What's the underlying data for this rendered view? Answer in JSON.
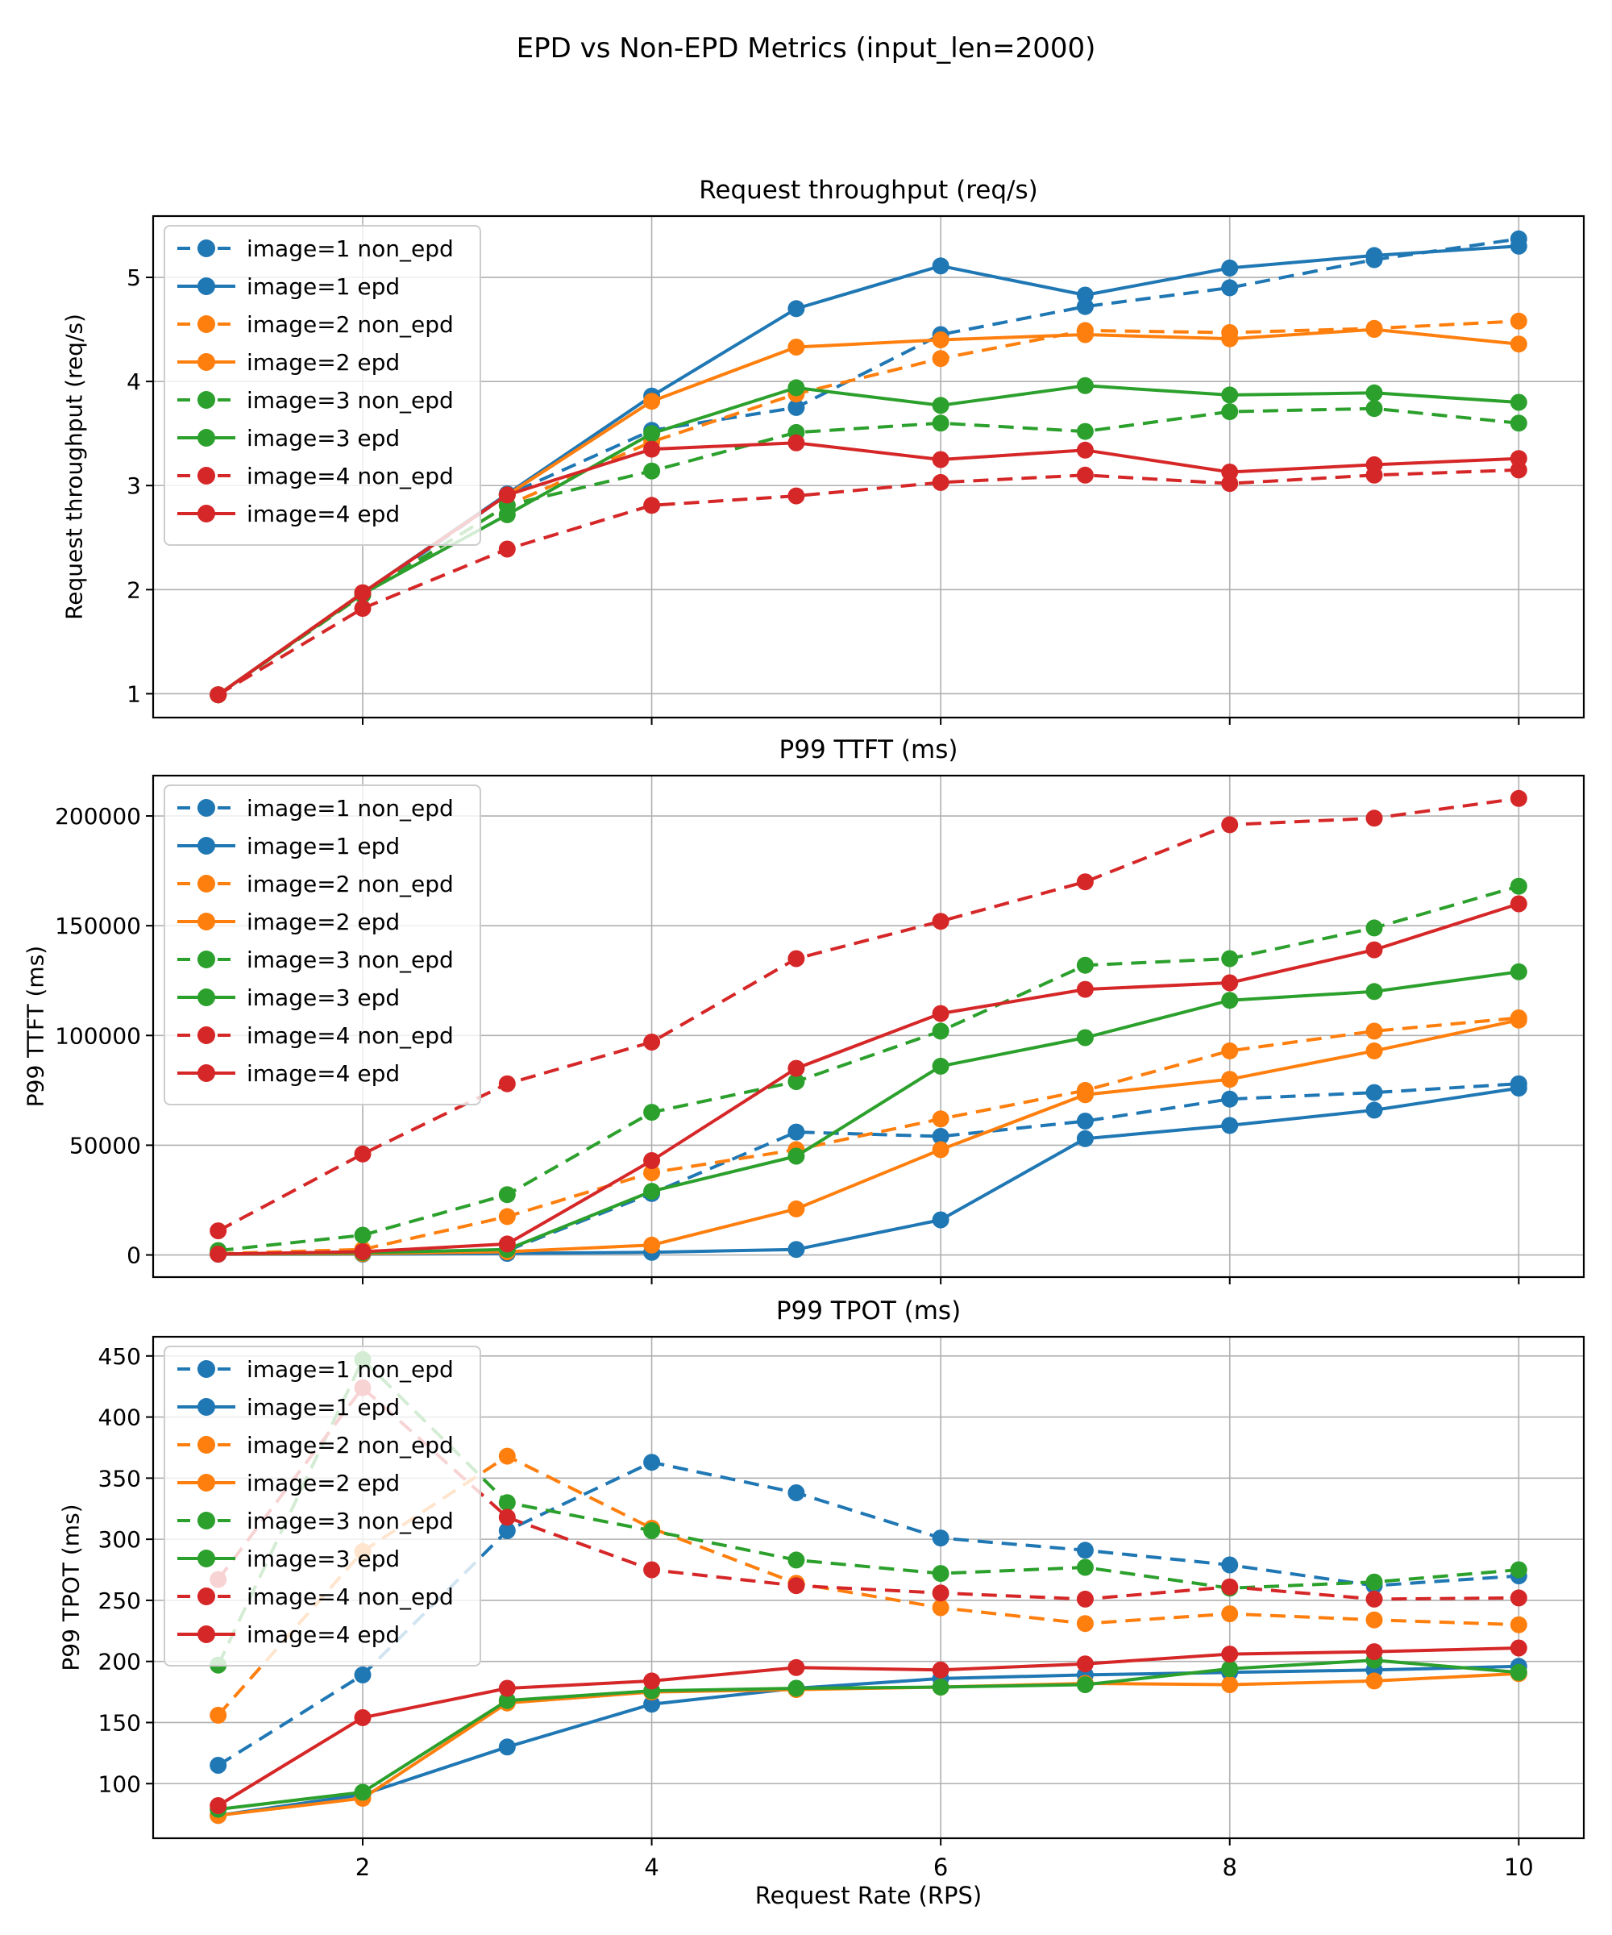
{
  "figure": {
    "title": "EPD vs Non-EPD Metrics (input_len=2000)",
    "xlabel": "Request Rate (RPS)",
    "colors": {
      "blue": "#1f77b4",
      "orange": "#ff7f0e",
      "green": "#2ca02c",
      "red": "#d62728"
    },
    "grid_color": "#b0b0b0",
    "legend_labels": [
      "image=1 non_epd",
      "image=1 epd",
      "image=2 non_epd",
      "image=2 epd",
      "image=3 non_epd",
      "image=3 epd",
      "image=4 non_epd",
      "image=4 epd"
    ]
  },
  "chart_data": [
    {
      "type": "line",
      "title": "Request throughput (req/s)",
      "ylabel": "Request throughput (req/s)",
      "xlabel": "",
      "x": [
        1,
        2,
        3,
        4,
        5,
        6,
        7,
        8,
        9,
        10
      ],
      "xticks": [
        2,
        4,
        6,
        8,
        10
      ],
      "yticks": [
        1,
        2,
        3,
        4,
        5
      ],
      "ytick_labels": [
        "1",
        "2",
        "3",
        "4",
        "5"
      ],
      "ylim": [
        0.771,
        5.589
      ],
      "grid": true,
      "legend_position": "upper-left",
      "series": [
        {
          "name": "image=1 non_epd",
          "color": "blue",
          "dash": true,
          "values": [
            0.99,
            1.95,
            2.91,
            3.53,
            3.75,
            4.45,
            4.72,
            4.9,
            5.17,
            5.37
          ]
        },
        {
          "name": "image=1 epd",
          "color": "blue",
          "dash": false,
          "values": [
            0.99,
            1.97,
            2.92,
            3.86,
            4.7,
            5.11,
            4.83,
            5.09,
            5.21,
            5.3
          ]
        },
        {
          "name": "image=2 non_epd",
          "color": "orange",
          "dash": true,
          "values": [
            0.99,
            1.95,
            2.81,
            3.42,
            3.88,
            4.22,
            4.49,
            4.47,
            4.51,
            4.58
          ]
        },
        {
          "name": "image=2 epd",
          "color": "orange",
          "dash": false,
          "values": [
            0.99,
            1.97,
            2.91,
            3.81,
            4.33,
            4.4,
            4.45,
            4.41,
            4.5,
            4.36
          ]
        },
        {
          "name": "image=3 non_epd",
          "color": "green",
          "dash": true,
          "values": [
            0.99,
            1.95,
            2.81,
            3.14,
            3.51,
            3.6,
            3.52,
            3.71,
            3.74,
            3.6
          ]
        },
        {
          "name": "image=3 epd",
          "color": "green",
          "dash": false,
          "values": [
            0.99,
            1.96,
            2.72,
            3.5,
            3.94,
            3.77,
            3.96,
            3.87,
            3.89,
            3.8
          ]
        },
        {
          "name": "image=4 non_epd",
          "color": "red",
          "dash": true,
          "values": [
            0.99,
            1.82,
            2.39,
            2.81,
            2.9,
            3.03,
            3.1,
            3.02,
            3.1,
            3.15
          ]
        },
        {
          "name": "image=4 epd",
          "color": "red",
          "dash": false,
          "values": [
            0.99,
            1.97,
            2.91,
            3.35,
            3.41,
            3.25,
            3.34,
            3.13,
            3.2,
            3.26
          ]
        }
      ]
    },
    {
      "type": "line",
      "title": "P99 TTFT (ms)",
      "ylabel": "P99 TTFT (ms)",
      "xlabel": "",
      "x": [
        1,
        2,
        3,
        4,
        5,
        6,
        7,
        8,
        9,
        10
      ],
      "xticks": [
        2,
        4,
        6,
        8,
        10
      ],
      "yticks": [
        0,
        50000,
        100000,
        150000,
        200000
      ],
      "ytick_labels": [
        "0",
        "50000",
        "100000",
        "150000",
        "200000"
      ],
      "ylim": [
        -10085,
        218385
      ],
      "grid": true,
      "legend_position": "upper-left",
      "series": [
        {
          "name": "image=1 non_epd",
          "color": "blue",
          "dash": true,
          "values": [
            500,
            800,
            2000,
            28000,
            56000,
            54000,
            61000,
            71000,
            74000,
            78000
          ]
        },
        {
          "name": "image=1 epd",
          "color": "blue",
          "dash": false,
          "values": [
            300,
            400,
            700,
            1200,
            2500,
            16000,
            53000,
            59000,
            66000,
            76000
          ]
        },
        {
          "name": "image=2 non_epd",
          "color": "orange",
          "dash": true,
          "values": [
            600,
            2500,
            17500,
            37500,
            48000,
            62000,
            75000,
            93000,
            102000,
            108000
          ]
        },
        {
          "name": "image=2 epd",
          "color": "orange",
          "dash": false,
          "values": [
            400,
            600,
            1500,
            4500,
            21000,
            48000,
            73000,
            80000,
            93000,
            107000
          ]
        },
        {
          "name": "image=3 non_epd",
          "color": "green",
          "dash": true,
          "values": [
            2000,
            9000,
            27500,
            65000,
            79000,
            102000,
            132000,
            135000,
            149000,
            168000
          ]
        },
        {
          "name": "image=3 epd",
          "color": "green",
          "dash": false,
          "values": [
            500,
            1000,
            2500,
            29000,
            45000,
            86000,
            99000,
            116000,
            120000,
            129000
          ]
        },
        {
          "name": "image=4 non_epd",
          "color": "red",
          "dash": true,
          "values": [
            11000,
            46000,
            78000,
            97000,
            135000,
            152000,
            170000,
            196000,
            199000,
            208000
          ]
        },
        {
          "name": "image=4 epd",
          "color": "red",
          "dash": false,
          "values": [
            400,
            1500,
            5000,
            43000,
            85000,
            110000,
            121000,
            124000,
            139000,
            160000
          ]
        }
      ]
    },
    {
      "type": "line",
      "title": "P99 TPOT (ms)",
      "ylabel": "P99 TPOT (ms)",
      "xlabel": "Request Rate (RPS)",
      "x": [
        1,
        2,
        3,
        4,
        5,
        6,
        7,
        8,
        9,
        10
      ],
      "xticks": [
        2,
        4,
        6,
        8,
        10
      ],
      "yticks": [
        100,
        150,
        200,
        250,
        300,
        350,
        400,
        450
      ],
      "ytick_labels": [
        "100",
        "150",
        "200",
        "250",
        "300",
        "350",
        "400",
        "450"
      ],
      "ylim": [
        55.3,
        465.7
      ],
      "grid": true,
      "legend_position": "upper-left",
      "series": [
        {
          "name": "image=1 non_epd",
          "color": "blue",
          "dash": true,
          "values": [
            115,
            189,
            307,
            363,
            338,
            301,
            291,
            279,
            262,
            270
          ]
        },
        {
          "name": "image=1 epd",
          "color": "blue",
          "dash": false,
          "values": [
            74,
            91,
            130,
            165,
            178,
            186,
            189,
            191,
            193,
            196
          ]
        },
        {
          "name": "image=2 non_epd",
          "color": "orange",
          "dash": true,
          "values": [
            156,
            290,
            368,
            309,
            264,
            244,
            231,
            239,
            234,
            230
          ]
        },
        {
          "name": "image=2 epd",
          "color": "orange",
          "dash": false,
          "values": [
            74,
            88,
            166,
            175,
            177,
            179,
            182,
            181,
            184,
            190
          ]
        },
        {
          "name": "image=3 non_epd",
          "color": "green",
          "dash": true,
          "values": [
            197,
            447,
            330,
            307,
            283,
            272,
            277,
            260,
            265,
            275
          ]
        },
        {
          "name": "image=3 epd",
          "color": "green",
          "dash": false,
          "values": [
            79,
            93,
            168,
            176,
            178,
            179,
            181,
            194,
            201,
            191
          ]
        },
        {
          "name": "image=4 non_epd",
          "color": "red",
          "dash": true,
          "values": [
            267,
            424,
            318,
            275,
            262,
            256,
            251,
            261,
            251,
            252
          ]
        },
        {
          "name": "image=4 epd",
          "color": "red",
          "dash": false,
          "values": [
            82,
            154,
            178,
            184,
            195,
            193,
            198,
            206,
            208,
            211
          ]
        }
      ]
    }
  ]
}
